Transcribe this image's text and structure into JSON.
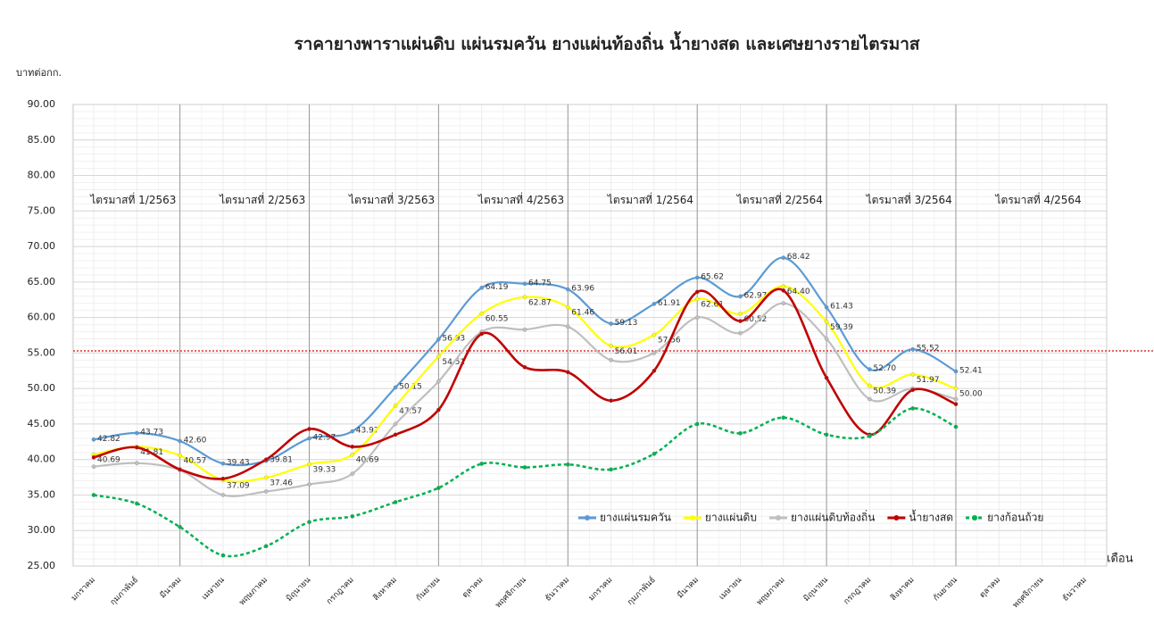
{
  "chart_data": {
    "type": "line",
    "title": "ราคายางพาราแผ่นดิบ แผ่นรมควัน ยางแผ่นท้องถิ่น น้ำยางสด และเศษยางรายไตรมาส",
    "y_label": "บาทต่อกก.",
    "x_label": "เดือน",
    "categories": [
      "มกราคม",
      "กุมภาพันธ์",
      "มีนาคม",
      "เมษายน",
      "พฤษภาคม",
      "มิถุนายน",
      "กรกฎาคม",
      "สิงหาคม",
      "กันยายน",
      "ตุลาคม",
      "พฤศจิกายน",
      "ธันวาคม",
      "มกราคม",
      "กุมภาพันธ์",
      "มีนาคม",
      "เมษายน",
      "พฤษภาคม",
      "มิถุนายน",
      "กรกฎาคม",
      "สิงหาคม",
      "กันยายน",
      "ตุลาคม",
      "พฤศจิกายน",
      "ธันวาคม"
    ],
    "quarters": [
      "ไตรมาสที่ 1/2563",
      "ไตรมาสที่ 2/2563",
      "ไตรมาสที่ 3/2563",
      "ไตรมาสที่ 4/2563",
      "ไตรมาสที่ 1/2564",
      "ไตรมาสที่ 2/2564",
      "ไตรมาสที่ 3/2564",
      "ไตรมาสที่ 4/2564"
    ],
    "ylim": [
      25,
      90
    ],
    "yticks": [
      {
        "value": 25,
        "label": "25.00"
      },
      {
        "value": 30,
        "label": "30.00"
      },
      {
        "value": 35,
        "label": "35.00"
      },
      {
        "value": 40,
        "label": "40.00"
      },
      {
        "value": 45,
        "label": "45.00"
      },
      {
        "value": 50,
        "label": "50.00"
      },
      {
        "value": 55,
        "label": "55.00"
      },
      {
        "value": 60,
        "label": "60.00"
      },
      {
        "value": 65,
        "label": "65.00"
      },
      {
        "value": 70,
        "label": "70.00"
      },
      {
        "value": 75,
        "label": "75.00"
      },
      {
        "value": 80,
        "label": "80.00"
      },
      {
        "value": 85,
        "label": "85.00"
      },
      {
        "value": 90,
        "label": "90.00"
      }
    ],
    "grid": true,
    "reference_line": 55.3,
    "reference_color": "#e03030",
    "legend": "lower right",
    "series": [
      {
        "name": "ยางแผ่นรมควัน",
        "color": "#5b9bd5",
        "values": [
          42.82,
          43.73,
          42.6,
          39.43,
          39.81,
          42.97,
          43.97,
          50.15,
          56.93,
          64.19,
          64.75,
          63.96,
          59.13,
          61.91,
          65.62,
          62.97,
          68.42,
          61.43,
          52.7,
          55.52,
          52.41,
          null,
          null,
          null
        ],
        "value_labels": [
          "42.82",
          "43.73",
          "42.60",
          "39.43",
          "39.81",
          "42.97",
          "43.97",
          "50.15",
          "56.93",
          "64.19",
          "64.75",
          "63.96",
          "59.13",
          "61.91",
          "65.62",
          "62.97",
          "68.42",
          "61.43",
          "52.70",
          "55.52",
          "52.41",
          null,
          null,
          null
        ]
      },
      {
        "name": "ยางแผ่นดิบ",
        "color": "#ffff00",
        "values": [
          40.69,
          41.81,
          40.57,
          37.09,
          37.46,
          39.33,
          40.69,
          47.57,
          54.51,
          60.55,
          62.87,
          61.46,
          56.01,
          57.56,
          62.61,
          60.52,
          64.4,
          59.39,
          50.39,
          51.97,
          50.0,
          null,
          null,
          null
        ],
        "value_labels": [
          "40.69",
          "41.81",
          "40.57",
          "37.09",
          "37.46",
          "39.33",
          "40.69",
          "47.57",
          "54.51",
          "60.55",
          "62.87",
          "61.46",
          "56.01",
          "57.56",
          "62.61",
          "60.52",
          "64.40",
          "59.39",
          "50.39",
          "51.97",
          "50.00",
          null,
          null,
          null
        ]
      },
      {
        "name": "ยางแผ่นดิบท้องถิ่น",
        "color": "#bfbfbf",
        "values": [
          39,
          39.5,
          38.5,
          35,
          35.5,
          36.5,
          38,
          45,
          51,
          58,
          58.3,
          58.7,
          54,
          55,
          60,
          57.8,
          62,
          57,
          48.5,
          50,
          48.5,
          null,
          null,
          null
        ]
      },
      {
        "name": "น้ำยางสด",
        "color": "#c00000",
        "values": [
          40.3,
          41.7,
          38.6,
          37.3,
          40,
          44.3,
          41.8,
          43.5,
          47,
          57.7,
          53,
          52.3,
          48.3,
          52.5,
          63.6,
          59.5,
          63.8,
          51.5,
          43.5,
          49.8,
          47.8,
          null,
          null,
          null
        ]
      },
      {
        "name": "ยางก้อนถ้วย",
        "color": "#00b050",
        "dashed": true,
        "values": [
          35,
          33.8,
          30.5,
          26.5,
          27.8,
          31.2,
          32,
          34,
          36,
          39.4,
          38.9,
          39.3,
          38.6,
          40.8,
          45,
          43.7,
          45.9,
          43.5,
          43.3,
          47.2,
          44.6,
          null,
          null,
          null
        ]
      }
    ]
  }
}
